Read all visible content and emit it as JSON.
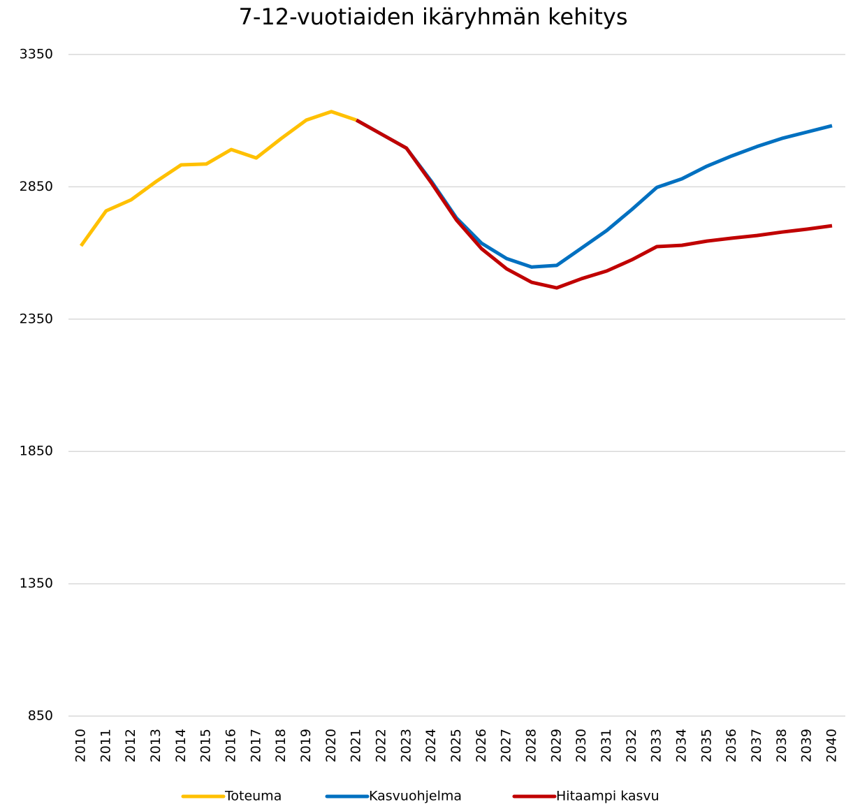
{
  "chart_data": {
    "type": "line",
    "title": "7-12-vuotiaiden ikäryhmän kehitys",
    "categories": [
      "2010",
      "2011",
      "2012",
      "2013",
      "2014",
      "2015",
      "2016",
      "2017",
      "2018",
      "2019",
      "2020",
      "2021",
      "2022",
      "2023",
      "2024",
      "2025",
      "2026",
      "2027",
      "2028",
      "2029",
      "2030",
      "2031",
      "2032",
      "2033",
      "2034",
      "2035",
      "2036",
      "2037",
      "2038",
      "2039",
      "2040"
    ],
    "series": [
      {
        "name": "Toteuma",
        "color": "#ffc000",
        "values": [
          2627,
          2759,
          2801,
          2870,
          2933,
          2936,
          2991,
          2959,
          3033,
          3102,
          3134,
          3102,
          null,
          null,
          null,
          null,
          null,
          null,
          null,
          null,
          null,
          null,
          null,
          null,
          null,
          null,
          null,
          null,
          null,
          null,
          null
        ]
      },
      {
        "name": "Kasvuohjelma",
        "color": "#0070c0",
        "values": [
          null,
          null,
          null,
          null,
          null,
          null,
          null,
          null,
          null,
          null,
          null,
          3102,
          3049,
          2996,
          2870,
          2732,
          2637,
          2579,
          2547,
          2553,
          2619,
          2685,
          2764,
          2848,
          2880,
          2928,
          2967,
          3002,
          3033,
          3057,
          3081
        ]
      },
      {
        "name": "Hitaampi kasvu",
        "color": "#c00000",
        "values": [
          null,
          null,
          null,
          null,
          null,
          null,
          null,
          null,
          null,
          null,
          null,
          3102,
          3049,
          2996,
          2864,
          2724,
          2616,
          2540,
          2489,
          2468,
          2503,
          2532,
          2574,
          2624,
          2629,
          2645,
          2656,
          2666,
          2679,
          2690,
          2703
        ]
      }
    ],
    "ylim": [
      850,
      3350
    ],
    "yticks": [
      850,
      1350,
      1850,
      2350,
      2850,
      3350
    ],
    "grid": true,
    "legend": "bottom"
  }
}
